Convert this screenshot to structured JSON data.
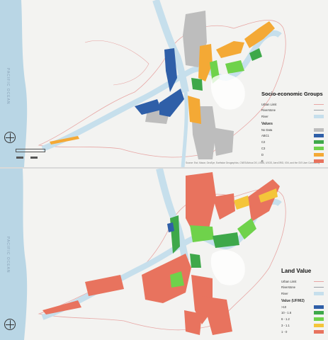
{
  "colors": {
    "land": "#f3f3f1",
    "sea": "#b9d6e5",
    "river": "#c6dfec",
    "limit": "#e7a6a4",
    "grey": "#bdbdbd",
    "blue": "#2f5fa8",
    "green_dark": "#3ea84a",
    "green_light": "#6fd24b",
    "orange": "#f4a935",
    "red": "#e8735e"
  },
  "top_map": {
    "ocean_label": "PACIFIC OCEAN",
    "credits": "Source: Esri, Maxar, GeoEye, Earthstar Geographics, CNES/Airbus DS, USDA, USGS, AeroGRID, IGN, and the GIS User Community",
    "legend": {
      "title": "Socio-economic Groups",
      "lines": [
        {
          "label": "Urban Limit",
          "color": "#e7a6a4"
        },
        {
          "label": "Riverstone",
          "color": "#9aa0a6"
        },
        {
          "label": "River",
          "color": "#c6dfec"
        }
      ],
      "values_title": "Values",
      "items": [
        {
          "label": "No Data",
          "color": "#bdbdbd"
        },
        {
          "label": "ABC1",
          "color": "#2f5fa8"
        },
        {
          "label": "C2",
          "color": "#3ea84a"
        },
        {
          "label": "C3",
          "color": "#6fd24b"
        },
        {
          "label": "D",
          "color": "#f4a935"
        },
        {
          "label": "E",
          "color": "#e8735e"
        }
      ]
    }
  },
  "bottom_map": {
    "ocean_label": "PACIFIC OCEAN",
    "legend": {
      "title": "Land Value",
      "lines": [
        {
          "label": "Urban Limit",
          "color": "#e7a6a4"
        },
        {
          "label": "Riverstone",
          "color": "#9aa0a6"
        },
        {
          "label": "River",
          "color": "#c6dfec"
        }
      ],
      "values_title": "Value (UF/M2)",
      "items": [
        {
          "label": ">10",
          "color": "#2f5fa8"
        },
        {
          "label": "10 - 1.6",
          "color": "#3ea84a"
        },
        {
          "label": "6 - 1.2",
          "color": "#6fd24b"
        },
        {
          "label": "3 - 1.1",
          "color": "#f4c53a"
        },
        {
          "label": "1 - 0",
          "color": "#e8735e"
        }
      ]
    }
  }
}
